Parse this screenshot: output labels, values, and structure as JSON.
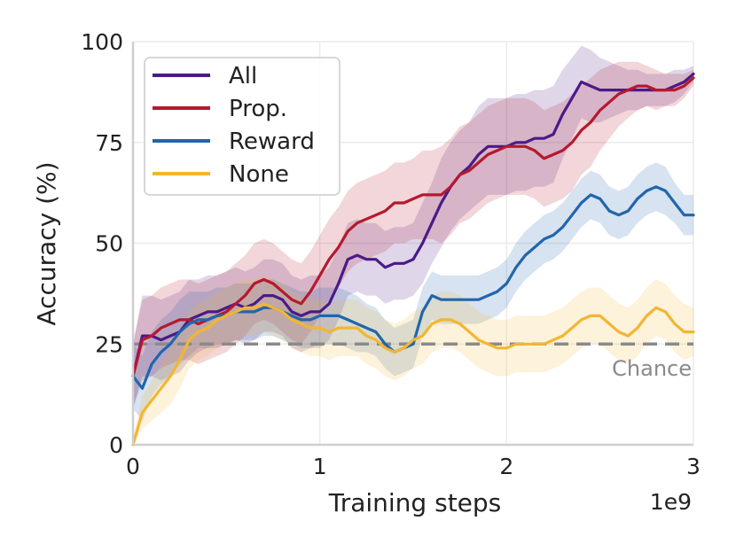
{
  "chart_data": {
    "type": "line",
    "xlabel": "Training steps",
    "ylabel": "Accuracy (%)",
    "x_scale_label": "1e9",
    "xlim": [
      0,
      3
    ],
    "ylim": [
      0,
      100
    ],
    "x_ticks": [
      0,
      1,
      2,
      3
    ],
    "x_tick_labels": [
      "0",
      "1",
      "2",
      "3"
    ],
    "y_ticks": [
      0,
      25,
      50,
      75,
      100
    ],
    "y_tick_labels": [
      "0",
      "25",
      "50",
      "75",
      "100"
    ],
    "grid": true,
    "legend_position": "top-left",
    "reference_line": {
      "value": 25,
      "label": "Chance",
      "color": "#8a8a8a",
      "style": "dashed"
    },
    "x": [
      0,
      0.05,
      0.1,
      0.15,
      0.2,
      0.25,
      0.3,
      0.35,
      0.4,
      0.45,
      0.5,
      0.55,
      0.6,
      0.65,
      0.7,
      0.75,
      0.8,
      0.85,
      0.9,
      0.95,
      1.0,
      1.05,
      1.1,
      1.15,
      1.2,
      1.25,
      1.3,
      1.35,
      1.4,
      1.45,
      1.5,
      1.55,
      1.6,
      1.65,
      1.7,
      1.75,
      1.8,
      1.85,
      1.9,
      1.95,
      2.0,
      2.05,
      2.1,
      2.15,
      2.2,
      2.25,
      2.3,
      2.35,
      2.4,
      2.45,
      2.5,
      2.55,
      2.6,
      2.65,
      2.7,
      2.75,
      2.8,
      2.85,
      2.9,
      2.95,
      3.0
    ],
    "series": [
      {
        "name": "All",
        "color": "#4b1a87",
        "values": [
          17,
          27,
          27,
          26,
          27,
          28,
          31,
          32,
          33,
          33,
          34,
          35,
          34,
          35,
          37,
          37,
          36,
          33,
          32,
          33,
          33,
          35,
          40,
          46,
          47,
          46,
          46,
          44,
          45,
          45,
          46,
          50,
          55,
          60,
          64,
          67,
          69,
          72,
          74,
          74,
          74,
          75,
          75,
          76,
          76,
          77,
          82,
          86,
          90,
          89,
          88,
          88,
          88,
          88,
          88,
          88,
          88,
          88,
          89,
          90,
          92
        ],
        "band": [
          8,
          10,
          10,
          10,
          10,
          10,
          10,
          9,
          9,
          9,
          9,
          9,
          9,
          9,
          9,
          9,
          9,
          9,
          9,
          9,
          9,
          9,
          9,
          9,
          9,
          9,
          9,
          9,
          9,
          9,
          9,
          10,
          10,
          11,
          11,
          11,
          11,
          12,
          12,
          12,
          12,
          12,
          12,
          12,
          12,
          12,
          11,
          10,
          9,
          9,
          8,
          7,
          6,
          5,
          5,
          4,
          4,
          4,
          4,
          3,
          2
        ]
      },
      {
        "name": "Prop.",
        "color": "#b5192e",
        "values": [
          17,
          26,
          27,
          29,
          30,
          31,
          31,
          30,
          31,
          32,
          33,
          35,
          37,
          40,
          41,
          40,
          38,
          36,
          35,
          38,
          42,
          46,
          49,
          53,
          55,
          56,
          57,
          58,
          60,
          60,
          61,
          62,
          62,
          62,
          64,
          67,
          68,
          70,
          72,
          73,
          74,
          74,
          74,
          73,
          71,
          72,
          73,
          75,
          78,
          80,
          83,
          85,
          87,
          88,
          89,
          89,
          88,
          88,
          88,
          89,
          91
        ],
        "band": [
          8,
          10,
          10,
          10,
          10,
          10,
          10,
          10,
          10,
          10,
          10,
          10,
          10,
          10,
          10,
          10,
          10,
          10,
          10,
          10,
          10,
          10,
          10,
          10,
          10,
          10,
          10,
          10,
          10,
          10,
          10,
          11,
          11,
          12,
          12,
          12,
          12,
          12,
          12,
          12,
          12,
          12,
          12,
          12,
          12,
          12,
          12,
          12,
          11,
          11,
          10,
          9,
          8,
          7,
          6,
          5,
          5,
          4,
          4,
          3,
          2
        ]
      },
      {
        "name": "Reward",
        "color": "#2166ac",
        "values": [
          17,
          14,
          20,
          23,
          25,
          28,
          30,
          31,
          31,
          32,
          32,
          33,
          33,
          33,
          34,
          34,
          33,
          32,
          31,
          31,
          32,
          32,
          32,
          31,
          30,
          29,
          28,
          25,
          23,
          24,
          25,
          33,
          37,
          36,
          36,
          36,
          36,
          36,
          37,
          38,
          40,
          44,
          47,
          49,
          51,
          52,
          54,
          57,
          60,
          62,
          61,
          58,
          57,
          58,
          61,
          63,
          64,
          63,
          60,
          57,
          57
        ],
        "band": [
          8,
          8,
          8,
          8,
          8,
          8,
          8,
          7,
          7,
          7,
          7,
          7,
          7,
          7,
          7,
          7,
          7,
          7,
          7,
          7,
          7,
          7,
          7,
          7,
          7,
          6,
          6,
          6,
          6,
          6,
          6,
          6,
          6,
          6,
          6,
          6,
          6,
          6,
          6,
          6,
          6,
          6,
          6,
          6,
          6,
          6,
          6,
          6,
          6,
          6,
          6,
          6,
          6,
          6,
          6,
          6,
          6,
          6,
          5,
          5,
          5
        ]
      },
      {
        "name": "None",
        "color": "#f2b632",
        "values": [
          0,
          8,
          11,
          14,
          17,
          21,
          26,
          28,
          29,
          31,
          32,
          33,
          34,
          34,
          35,
          34,
          33,
          31,
          30,
          29,
          29,
          28,
          29,
          29,
          29,
          27,
          26,
          24,
          23,
          24,
          26,
          27,
          30,
          31,
          31,
          30,
          28,
          26,
          25,
          24,
          24,
          25,
          25,
          25,
          25,
          26,
          27,
          29,
          31,
          32,
          32,
          30,
          28,
          27,
          29,
          32,
          34,
          33,
          30,
          28,
          28
        ],
        "band": [
          2,
          4,
          5,
          6,
          7,
          7,
          7,
          7,
          7,
          7,
          7,
          7,
          7,
          7,
          7,
          7,
          7,
          7,
          7,
          7,
          7,
          7,
          7,
          7,
          7,
          7,
          7,
          7,
          7,
          7,
          7,
          7,
          7,
          7,
          7,
          7,
          7,
          7,
          7,
          7,
          7,
          7,
          7,
          7,
          7,
          7,
          7,
          7,
          7,
          7,
          7,
          7,
          7,
          7,
          7,
          7,
          7,
          7,
          7,
          7,
          6
        ]
      }
    ]
  }
}
